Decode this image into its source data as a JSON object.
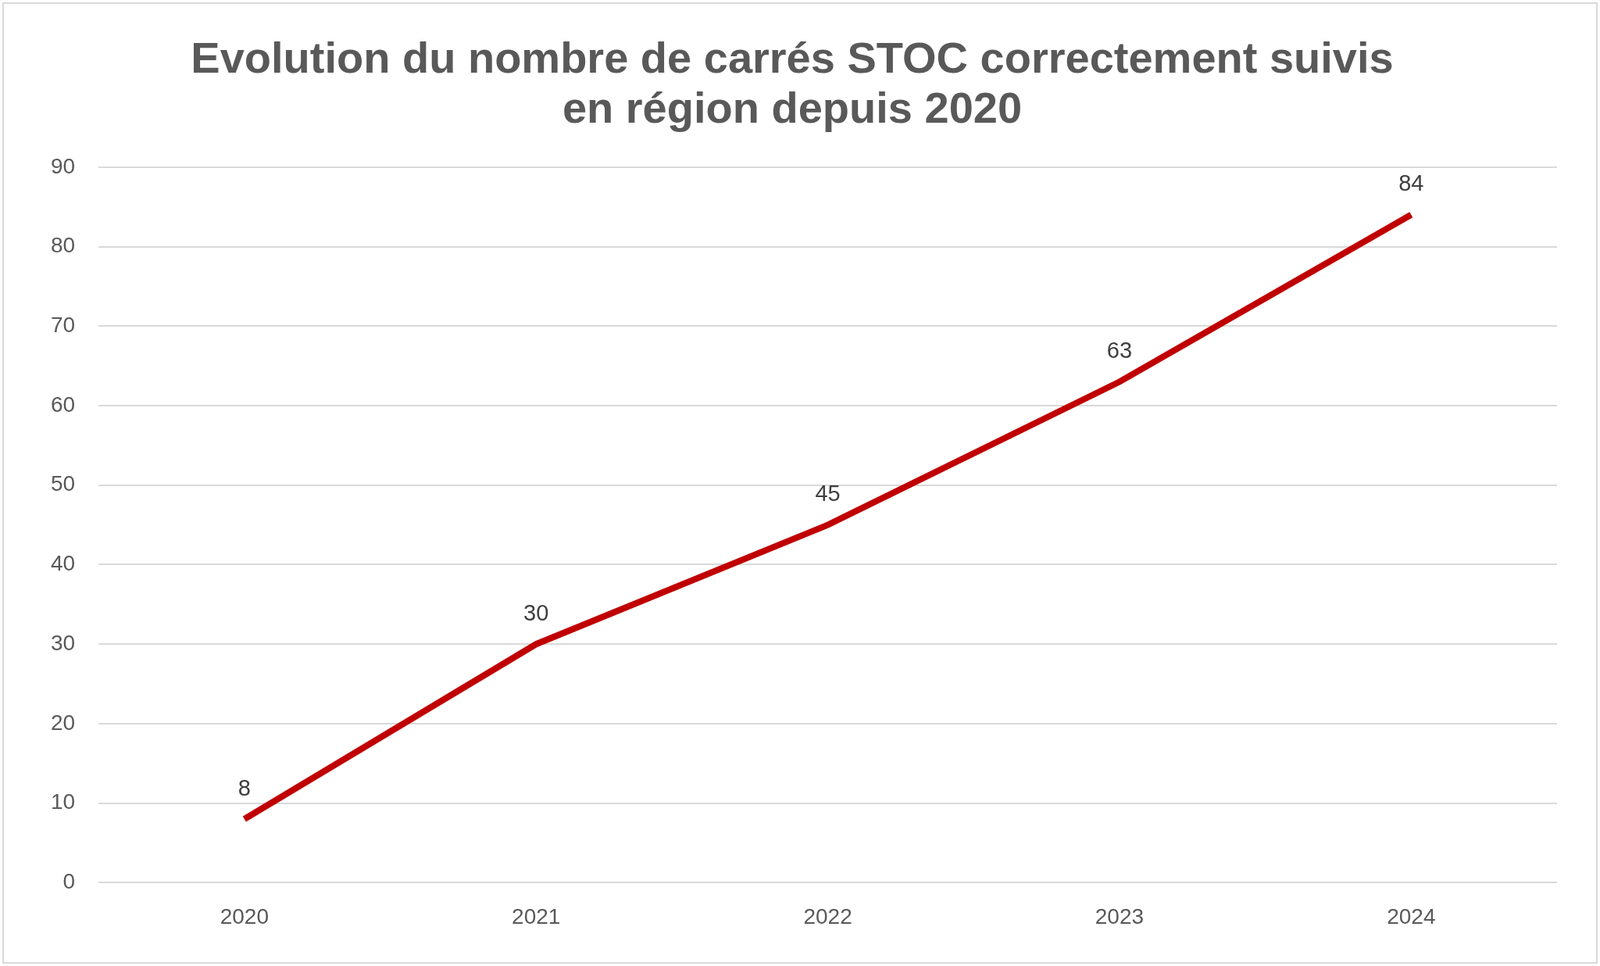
{
  "chart_data": {
    "type": "line",
    "title": [
      "Evolution du nombre de carrés STOC correctement suivis",
      "en région depuis 2020"
    ],
    "categories": [
      "2020",
      "2021",
      "2022",
      "2023",
      "2024"
    ],
    "values": [
      8,
      30,
      45,
      63,
      84
    ],
    "color": "#c00000",
    "ylim": [
      0,
      90
    ],
    "yticks": [
      0,
      10,
      20,
      30,
      40,
      50,
      60,
      70,
      80,
      90
    ],
    "grid": true,
    "data_labels": true
  }
}
